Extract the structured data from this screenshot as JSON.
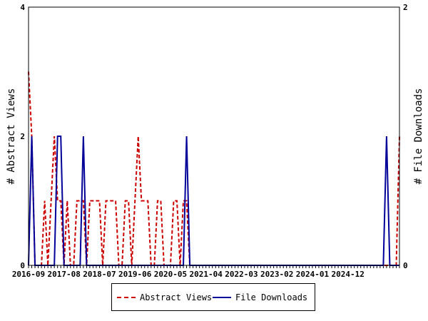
{
  "chart_data": {
    "type": "line",
    "y_left_label": "# Abstract Views",
    "y_right_label": "# File Downloads",
    "y_left_range": [
      0,
      4
    ],
    "y_right_range": [
      0,
      2
    ],
    "y_left_ticks": [
      "0",
      "2",
      "4"
    ],
    "y_right_ticks": [
      "0",
      "1",
      "2"
    ],
    "x_start": "2016-09",
    "x_tick_labels": [
      "2016-09",
      "2017-08",
      "2018-07",
      "2019-06",
      "2020-05",
      "2021-04",
      "2022-03",
      "2023-02",
      "2024-01",
      "2024-12"
    ],
    "x_months_count": 116,
    "grid": false,
    "legend_position": "bottom",
    "series": [
      {
        "name": "Abstract Views",
        "axis": "left",
        "color": "#cc0000",
        "dash": true,
        "values": [
          3,
          2,
          0,
          0,
          0,
          1,
          0,
          1,
          2,
          1,
          1,
          0,
          1,
          0,
          0,
          1,
          1,
          1,
          0,
          1,
          1,
          1,
          1,
          0,
          1,
          1,
          1,
          1,
          0,
          0,
          1,
          1,
          0,
          1,
          2,
          1,
          1,
          1,
          0,
          0,
          1,
          1,
          0,
          0,
          0,
          1,
          1,
          0,
          1,
          1,
          0,
          0,
          0,
          0,
          0,
          0,
          0,
          0,
          0,
          0,
          0,
          0,
          0,
          0,
          0,
          0,
          0,
          0,
          0,
          0,
          0,
          0,
          0,
          0,
          0,
          0,
          0,
          0,
          0,
          0,
          0,
          0,
          0,
          0,
          0,
          0,
          0,
          0,
          0,
          0,
          0,
          0,
          0,
          0,
          0,
          0,
          0,
          0,
          0,
          0,
          0,
          0,
          0,
          0,
          0,
          0,
          0,
          0,
          0,
          0,
          0,
          0,
          0,
          0,
          0,
          2
        ]
      },
      {
        "name": "File Downloads",
        "axis": "right",
        "color": "#000099",
        "dash": false,
        "values": [
          0,
          1,
          0,
          0,
          0,
          0,
          0,
          0,
          0,
          1,
          1,
          0,
          0,
          0,
          0,
          0,
          0,
          1,
          0,
          0,
          0,
          0,
          0,
          0,
          0,
          0,
          0,
          0,
          0,
          0,
          0,
          0,
          0,
          0,
          0,
          0,
          0,
          0,
          0,
          0,
          0,
          0,
          0,
          0,
          0,
          0,
          0,
          0,
          0,
          1,
          0,
          0,
          0,
          0,
          0,
          0,
          0,
          0,
          0,
          0,
          0,
          0,
          0,
          0,
          0,
          0,
          0,
          0,
          0,
          0,
          0,
          0,
          0,
          0,
          0,
          0,
          0,
          0,
          0,
          0,
          0,
          0,
          0,
          0,
          0,
          0,
          0,
          0,
          0,
          0,
          0,
          0,
          0,
          0,
          0,
          0,
          0,
          0,
          0,
          0,
          0,
          0,
          0,
          0,
          0,
          0,
          0,
          0,
          0,
          0,
          0,
          1,
          0,
          0,
          0,
          0
        ]
      }
    ]
  }
}
